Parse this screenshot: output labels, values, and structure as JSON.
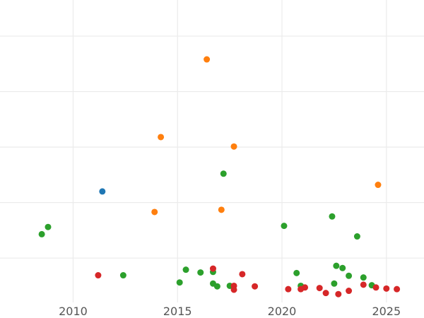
{
  "chart_data": {
    "type": "scatter",
    "title": "",
    "xlabel": "",
    "ylabel": "",
    "xlim": [
      2006.5,
      2026.8
    ],
    "ylim": [
      0,
      5.45
    ],
    "x_ticks": [
      "2010",
      "2015",
      "2020",
      "2025"
    ],
    "y_gridlines": [
      0.8,
      1.8,
      2.8,
      3.8,
      4.8
    ],
    "y_tick_labels_visible": false,
    "grid": true,
    "legend": "none",
    "series": [
      {
        "color": "#1f77b4",
        "points": [
          [
            2011.4,
            2.0
          ]
        ]
      },
      {
        "color": "#ff7f0e",
        "points": [
          [
            2013.9,
            1.63
          ],
          [
            2014.2,
            2.98
          ],
          [
            2016.4,
            4.38
          ],
          [
            2017.1,
            1.67
          ],
          [
            2017.7,
            2.81
          ],
          [
            2024.6,
            2.12
          ]
        ]
      },
      {
        "color": "#2ca02c",
        "points": [
          [
            2008.5,
            1.23
          ],
          [
            2008.8,
            1.36
          ],
          [
            2012.4,
            0.49
          ],
          [
            2015.1,
            0.36
          ],
          [
            2015.4,
            0.59
          ],
          [
            2016.1,
            0.54
          ],
          [
            2016.7,
            0.55
          ],
          [
            2016.7,
            0.34
          ],
          [
            2016.9,
            0.29
          ],
          [
            2017.5,
            0.3
          ],
          [
            2017.2,
            2.32
          ],
          [
            2020.1,
            1.38
          ],
          [
            2020.7,
            0.53
          ],
          [
            2020.9,
            0.3
          ],
          [
            2022.4,
            1.55
          ],
          [
            2022.5,
            0.34
          ],
          [
            2022.6,
            0.66
          ],
          [
            2022.9,
            0.62
          ],
          [
            2023.2,
            0.48
          ],
          [
            2023.6,
            1.19
          ],
          [
            2023.9,
            0.45
          ],
          [
            2024.3,
            0.31
          ]
        ]
      },
      {
        "color": "#d62728",
        "points": [
          [
            2011.2,
            0.49
          ],
          [
            2016.7,
            0.61
          ],
          [
            2017.7,
            0.3
          ],
          [
            2017.7,
            0.23
          ],
          [
            2018.1,
            0.51
          ],
          [
            2018.7,
            0.29
          ],
          [
            2020.3,
            0.24
          ],
          [
            2020.9,
            0.24
          ],
          [
            2021.1,
            0.27
          ],
          [
            2021.8,
            0.26
          ],
          [
            2022.1,
            0.17
          ],
          [
            2022.7,
            0.15
          ],
          [
            2023.2,
            0.21
          ],
          [
            2023.9,
            0.32
          ],
          [
            2024.5,
            0.27
          ],
          [
            2025.0,
            0.25
          ],
          [
            2025.5,
            0.24
          ]
        ]
      }
    ]
  }
}
